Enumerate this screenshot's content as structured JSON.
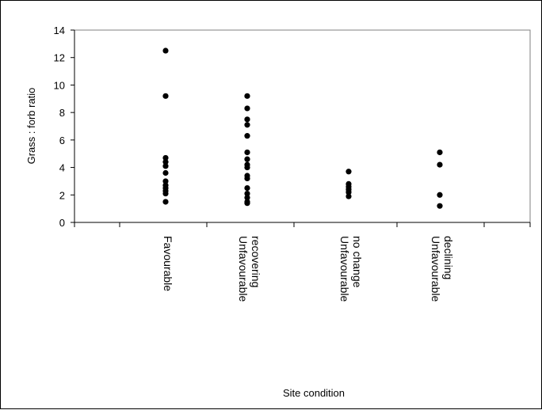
{
  "chart_data": {
    "type": "scatter",
    "title": "",
    "xlabel": "Site condition",
    "ylabel": "Grass : forb ratio",
    "ylim": [
      0,
      14
    ],
    "yticks": [
      0,
      2,
      4,
      6,
      8,
      10,
      12,
      14
    ],
    "y_tick_labels": [
      "0",
      "2",
      "4",
      "6",
      "8",
      "10",
      "12",
      "14"
    ],
    "grid": false,
    "legend": "none",
    "categories": [
      [
        "Favourable"
      ],
      [
        "Unfavourable",
        "recovering"
      ],
      [
        "Unfavourable",
        "no change"
      ],
      [
        "Unfavourable",
        "declining"
      ]
    ],
    "series": [
      {
        "points": [
          {
            "x": 1,
            "y": 12.5
          },
          {
            "x": 1,
            "y": 9.2
          },
          {
            "x": 1,
            "y": 4.7
          },
          {
            "x": 1,
            "y": 4.4
          },
          {
            "x": 1,
            "y": 4.1
          },
          {
            "x": 1,
            "y": 3.6
          },
          {
            "x": 1,
            "y": 3.0
          },
          {
            "x": 1,
            "y": 2.7
          },
          {
            "x": 1,
            "y": 2.5
          },
          {
            "x": 1,
            "y": 2.3
          },
          {
            "x": 1,
            "y": 2.1
          },
          {
            "x": 1,
            "y": 1.5
          },
          {
            "x": 2,
            "y": 9.2
          },
          {
            "x": 2,
            "y": 8.3
          },
          {
            "x": 2,
            "y": 7.5
          },
          {
            "x": 2,
            "y": 7.1
          },
          {
            "x": 2,
            "y": 6.3
          },
          {
            "x": 2,
            "y": 5.1
          },
          {
            "x": 2,
            "y": 4.6
          },
          {
            "x": 2,
            "y": 4.2
          },
          {
            "x": 2,
            "y": 4.0
          },
          {
            "x": 2,
            "y": 3.4
          },
          {
            "x": 2,
            "y": 3.2
          },
          {
            "x": 2,
            "y": 2.5
          },
          {
            "x": 2,
            "y": 2.1
          },
          {
            "x": 2,
            "y": 1.8
          },
          {
            "x": 2,
            "y": 1.5
          },
          {
            "x": 2,
            "y": 1.4
          },
          {
            "x": 3,
            "y": 3.7
          },
          {
            "x": 3,
            "y": 2.8
          },
          {
            "x": 3,
            "y": 2.6
          },
          {
            "x": 3,
            "y": 2.4
          },
          {
            "x": 3,
            "y": 2.2
          },
          {
            "x": 3,
            "y": 1.9
          },
          {
            "x": 4,
            "y": 5.1
          },
          {
            "x": 4,
            "y": 4.2
          },
          {
            "x": 4,
            "y": 2.0
          },
          {
            "x": 4,
            "y": 1.2
          }
        ]
      }
    ]
  }
}
